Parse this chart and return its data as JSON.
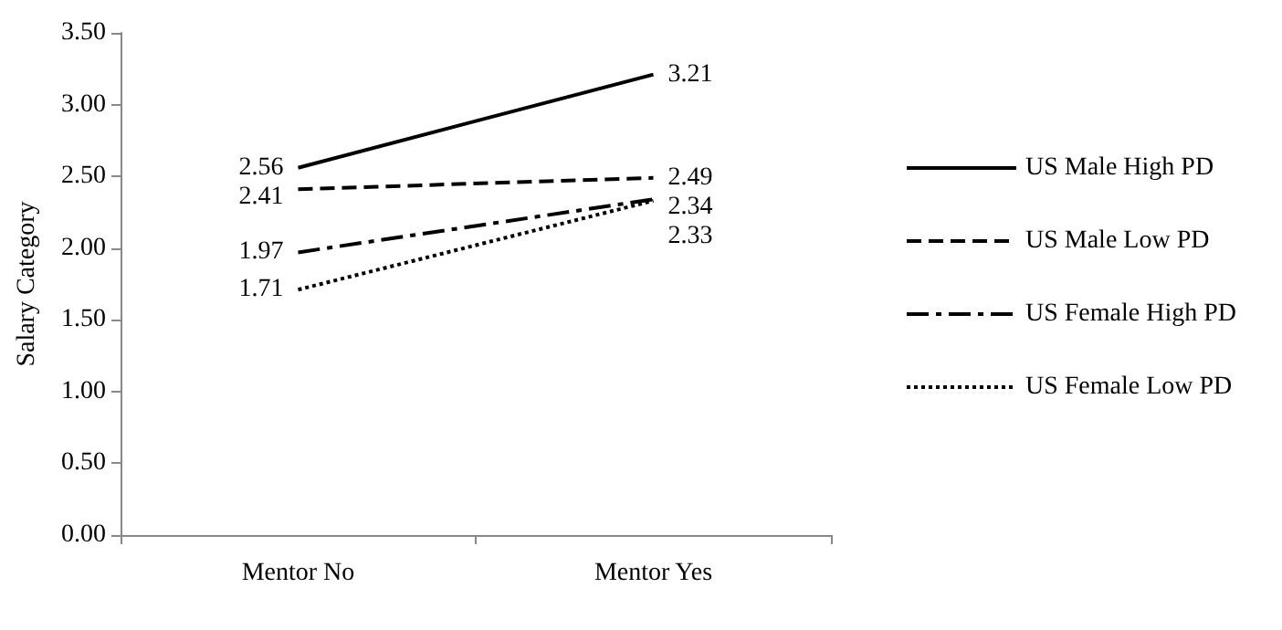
{
  "chart_data": {
    "type": "line",
    "ylabel": "Salary Category",
    "categories": [
      "Mentor No",
      "Mentor Yes"
    ],
    "series": [
      {
        "name": "US Male High PD",
        "color": "#000000",
        "values": [
          2.56,
          3.21
        ],
        "line_style": "solid"
      },
      {
        "name": "US Male Low PD",
        "color": "#000000",
        "values": [
          2.41,
          2.49
        ],
        "line_style": "dashed"
      },
      {
        "name": "US Female High PD",
        "color": "#000000",
        "values": [
          1.97,
          2.34
        ],
        "line_style": "dashdot"
      },
      {
        "name": "US Female Low PD",
        "color": "#000000",
        "values": [
          1.71,
          2.33
        ],
        "line_style": "dotted"
      }
    ],
    "ylim": [
      0,
      3.5
    ],
    "yticks": [
      {
        "value": 0,
        "label": "0.00"
      },
      {
        "value": 0.5,
        "label": "0.50"
      },
      {
        "value": 1,
        "label": "1.00"
      },
      {
        "value": 1.5,
        "label": "1.50"
      },
      {
        "value": 2,
        "label": "2.00"
      },
      {
        "value": 2.5,
        "label": "2.50"
      },
      {
        "value": 3,
        "label": "3.00"
      },
      {
        "value": 3.5,
        "label": "3.50"
      }
    ],
    "grid": false,
    "legend": "right",
    "marker": "none",
    "data_labels": true
  }
}
